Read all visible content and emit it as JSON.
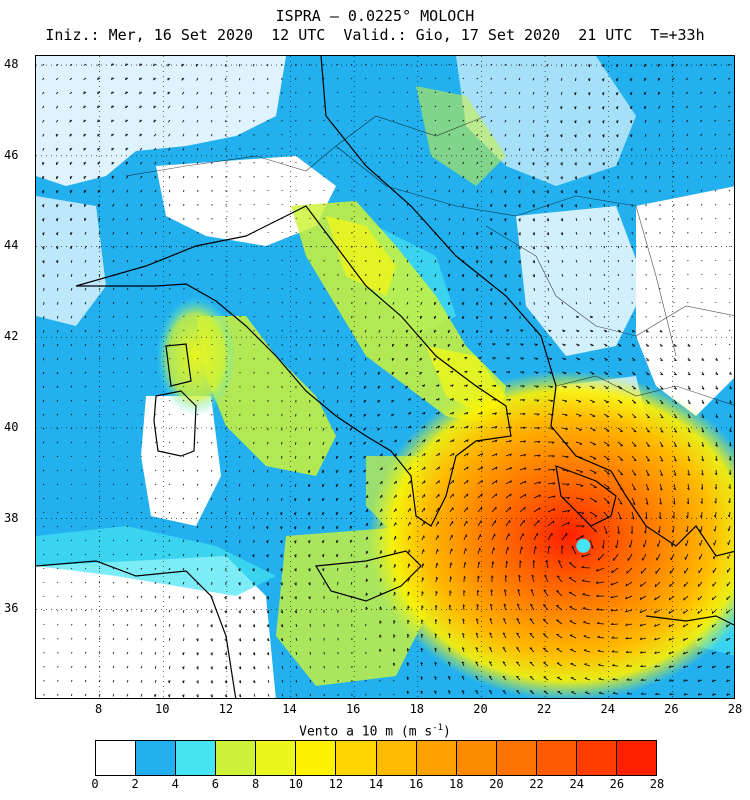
{
  "title_line1": "ISPRA – 0.0225° MOLOCH",
  "title_line2": "Iniz.: Mer, 16 Set 2020  12 UTC  Valid.: Gio, 17 Set 2020  21 UTC  T=+33h",
  "map": {
    "lon_range": [
      6,
      28
    ],
    "lat_range": [
      34,
      48.2
    ],
    "lon_ticks": [
      "8",
      "10",
      "12",
      "14",
      "16",
      "18",
      "20",
      "22",
      "24",
      "26",
      "28"
    ],
    "lat_ticks": [
      "36",
      "38",
      "40",
      "42",
      "44",
      "46",
      "48"
    ],
    "variable_label": "Vento a 10 m (m s",
    "unit_superscript": "-1",
    "unit_close": ")",
    "cyclone_center": {
      "lon": 23.2,
      "lat": 37.4
    },
    "colorbar": {
      "labels": [
        "0",
        "2",
        "4",
        "6",
        "8",
        "10",
        "12",
        "14",
        "16",
        "18",
        "20",
        "22",
        "24",
        "26",
        "28"
      ],
      "colors": [
        "#ffffff",
        "#22b0ee",
        "#44e4f2",
        "#cdf23a",
        "#ebf51e",
        "#fff200",
        "#ffd600",
        "#ffbb00",
        "#ffa200",
        "#ff8c00",
        "#ff7300",
        "#ff5a00",
        "#ff3c00",
        "#ff2000"
      ]
    }
  }
}
